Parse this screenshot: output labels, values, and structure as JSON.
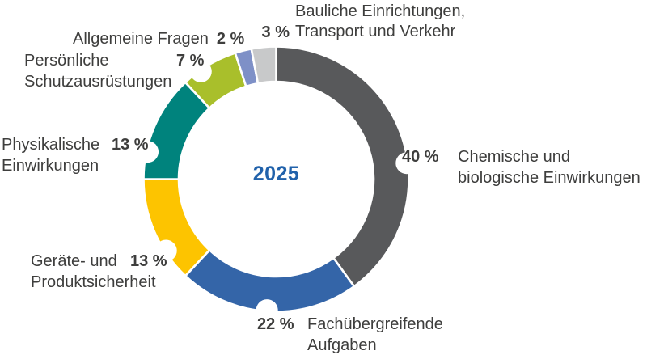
{
  "chart_data": {
    "type": "pie",
    "variant": "donut",
    "center_label": "2025",
    "center_label_color": "#2162ab",
    "text_color": "#3e3e3d",
    "legend_position": "around-chart",
    "start_angle_deg": 0,
    "direction": "clockwise",
    "segments": [
      {
        "label": "Chemische und biologische Einwirkungen",
        "value": 40,
        "pct_label": "40 %",
        "color": "#58595b",
        "notch_angle_deg": 83
      },
      {
        "label": "Fachübergreifende Aufgaben",
        "value": 22,
        "pct_label": "22 %",
        "color": "#3465a8",
        "notch_angle_deg": 184
      },
      {
        "label": "Geräte- und Produktsicherheit",
        "value": 13,
        "pct_label": "13 %",
        "color": "#fdc400",
        "notch_angle_deg": 237
      },
      {
        "label": "Physikalische Einwirkungen",
        "value": 13,
        "pct_label": "13 %",
        "color": "#00837d",
        "notch_angle_deg": 282
      },
      {
        "label": "Persönliche Schutzausrüstungen",
        "value": 7,
        "pct_label": "7 %",
        "color": "#a9bf2b",
        "notch_angle_deg": 325
      },
      {
        "label": "Allgemeine Fragen",
        "value": 2,
        "pct_label": "2 %",
        "color": "#7e90c7",
        "notch_angle_deg": null
      },
      {
        "label": "Bauliche Einrichtungen, Transport und Verkehr",
        "value": 3,
        "pct_label": "3 %",
        "color": "#c8c9ca",
        "notch_angle_deg": null
      }
    ]
  },
  "labels": {
    "bauliche": {
      "line1": "Bauliche Einrichtungen,",
      "line2": "Transport und Verkehr"
    },
    "allgemeine": {
      "text": "Allgemeine Fragen"
    },
    "persoenliche": {
      "line1": "Persönliche",
      "line2": "Schutzausrüstungen"
    },
    "physikalische": {
      "line1": "Physikalische",
      "line2": "Einwirkungen"
    },
    "geraete": {
      "line1": "Geräte- und",
      "line2": "Produktsicherheit"
    },
    "fach": {
      "line1": "Fachübergreifende",
      "line2": "Aufgaben"
    },
    "chemische": {
      "line1": "Chemische und",
      "line2": "biologische Einwirkungen"
    }
  }
}
